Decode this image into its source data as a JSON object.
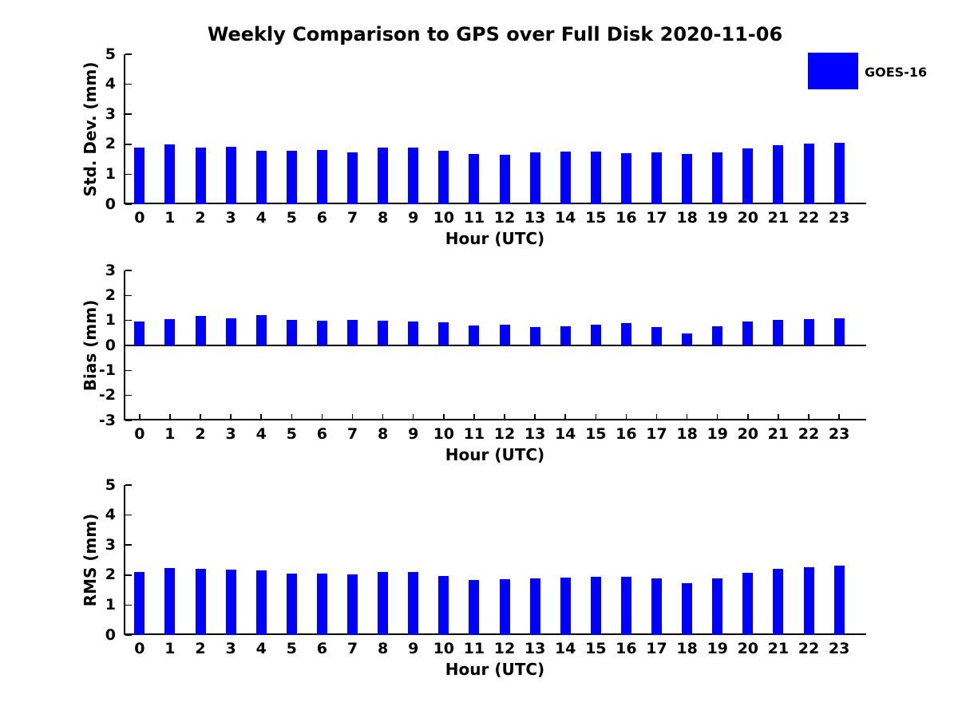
{
  "title": "Weekly Comparison to GPS over Full Disk 2020-11-06",
  "legend": {
    "label": "GOES-16",
    "color": "#0000ff",
    "position": "top-right"
  },
  "colors": {
    "bar": "#0000ff",
    "axis": "#000000",
    "text": "#000000",
    "background": "#ffffff"
  },
  "chart_data": [
    {
      "type": "bar",
      "ylabel": "Std. Dev. (mm)",
      "xlabel": "Hour (UTC)",
      "ylim": [
        0,
        5
      ],
      "yticks": [
        0,
        1,
        2,
        3,
        4,
        5
      ],
      "grid": false,
      "series_name": "GOES-16",
      "categories": [
        "0",
        "1",
        "2",
        "3",
        "4",
        "5",
        "6",
        "7",
        "8",
        "9",
        "10",
        "11",
        "12",
        "13",
        "14",
        "15",
        "16",
        "17",
        "18",
        "19",
        "20",
        "21",
        "22",
        "23"
      ],
      "values": [
        1.88,
        1.99,
        1.89,
        1.92,
        1.79,
        1.79,
        1.81,
        1.73,
        1.88,
        1.89,
        1.79,
        1.68,
        1.65,
        1.72,
        1.76,
        1.75,
        1.7,
        1.73,
        1.67,
        1.74,
        1.85,
        1.96,
        2.01,
        2.04
      ]
    },
    {
      "type": "bar",
      "ylabel": "Bias (mm)",
      "xlabel": "Hour (UTC)",
      "ylim": [
        -3,
        3
      ],
      "yticks": [
        -3,
        -2,
        -1,
        0,
        1,
        2,
        3
      ],
      "grid": false,
      "series_name": "GOES-16",
      "categories": [
        "0",
        "1",
        "2",
        "3",
        "4",
        "5",
        "6",
        "7",
        "8",
        "9",
        "10",
        "11",
        "12",
        "13",
        "14",
        "15",
        "16",
        "17",
        "18",
        "19",
        "20",
        "21",
        "22",
        "23"
      ],
      "values": [
        0.95,
        1.05,
        1.17,
        1.08,
        1.21,
        1.02,
        1.0,
        1.02,
        0.99,
        0.96,
        0.91,
        0.79,
        0.82,
        0.72,
        0.78,
        0.84,
        0.9,
        0.75,
        0.49,
        0.77,
        0.96,
        1.03,
        1.06,
        1.1
      ]
    },
    {
      "type": "bar",
      "ylabel": "RMS (mm)",
      "xlabel": "Hour (UTC)",
      "ylim": [
        0,
        5
      ],
      "yticks": [
        0,
        1,
        2,
        3,
        4,
        5
      ],
      "grid": false,
      "series_name": "GOES-16",
      "categories": [
        "0",
        "1",
        "2",
        "3",
        "4",
        "5",
        "6",
        "7",
        "8",
        "9",
        "10",
        "11",
        "12",
        "13",
        "14",
        "15",
        "16",
        "17",
        "18",
        "19",
        "20",
        "21",
        "22",
        "23"
      ],
      "values": [
        2.11,
        2.24,
        2.21,
        2.19,
        2.16,
        2.04,
        2.06,
        2.01,
        2.11,
        2.11,
        1.98,
        1.83,
        1.86,
        1.89,
        1.91,
        1.93,
        1.93,
        1.88,
        1.74,
        1.89,
        2.08,
        2.2,
        2.26,
        2.31
      ]
    }
  ]
}
